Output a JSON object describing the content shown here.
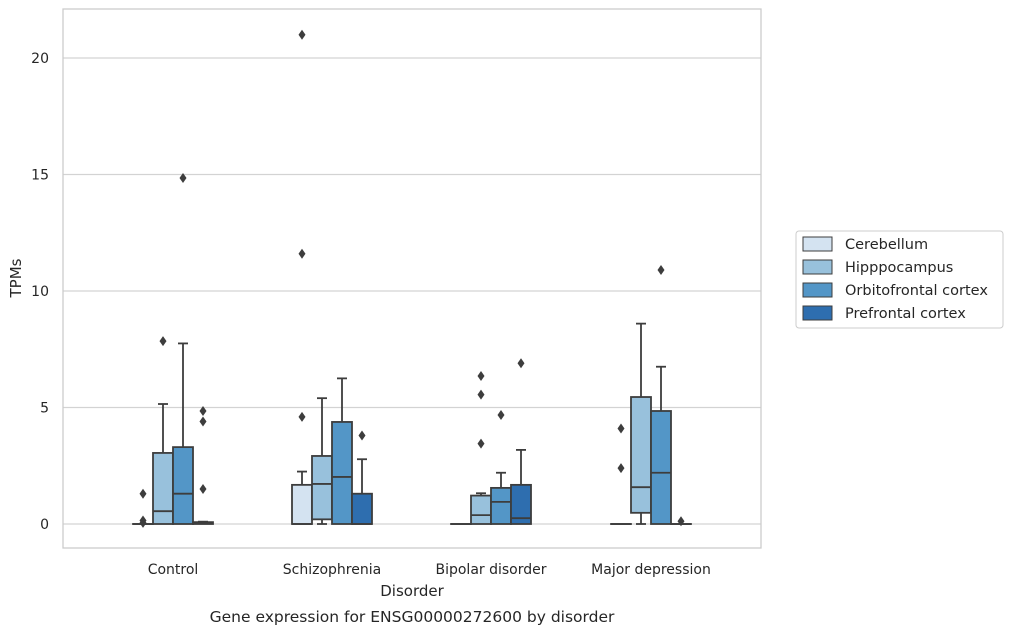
{
  "chart_data": {
    "type": "box",
    "caption": "Gene expression for ENSG00000272600 by disorder",
    "xlabel": "Disorder",
    "ylabel": "TPMs",
    "ylim": [
      -1.0,
      22.0
    ],
    "yticks": [
      0,
      5,
      10,
      15,
      20
    ],
    "grid": "horizontal",
    "legend_position": "right",
    "categories": [
      "Control",
      "Schizophrenia",
      "Bipolar disorder",
      "Major depression"
    ],
    "series": [
      {
        "name": "Cerebellum",
        "color": "#d4e3f1",
        "boxes": [
          {
            "category": "Control",
            "q1": 0.0,
            "median": 0.0,
            "q3": 0.0,
            "whisker_low": 0.0,
            "whisker_high": 0.0,
            "outliers": [
              0.15,
              1.3,
              0.05
            ]
          },
          {
            "category": "Schizophrenia",
            "q1": 0.0,
            "median": 0.0,
            "q3": 1.68,
            "whisker_low": 0.0,
            "whisker_high": 2.25,
            "outliers": [
              4.6,
              11.6,
              21.0
            ]
          },
          {
            "category": "Bipolar disorder",
            "q1": 0.0,
            "median": 0.0,
            "q3": 0.0,
            "whisker_low": 0.0,
            "whisker_high": 0.0,
            "outliers": []
          },
          {
            "category": "Major depression",
            "q1": 0.0,
            "median": 0.0,
            "q3": 0.0,
            "whisker_low": 0.0,
            "whisker_high": 0.0,
            "outliers": [
              4.1,
              2.4
            ]
          }
        ]
      },
      {
        "name": "Hipppocampus",
        "color": "#98c1dc",
        "boxes": [
          {
            "category": "Control",
            "q1": 0.0,
            "median": 0.55,
            "q3": 3.05,
            "whisker_low": 0.0,
            "whisker_high": 5.15,
            "outliers": [
              7.85
            ]
          },
          {
            "category": "Schizophrenia",
            "q1": 0.2,
            "median": 1.72,
            "q3": 2.92,
            "whisker_low": 0.0,
            "whisker_high": 5.4,
            "outliers": []
          },
          {
            "category": "Bipolar disorder",
            "q1": 0.0,
            "median": 0.38,
            "q3": 1.22,
            "whisker_low": 0.0,
            "whisker_high": 1.32,
            "outliers": [
              3.45,
              5.55,
              6.35
            ]
          },
          {
            "category": "Major depression",
            "q1": 0.48,
            "median": 1.58,
            "q3": 5.45,
            "whisker_low": 0.0,
            "whisker_high": 8.6,
            "outliers": []
          }
        ]
      },
      {
        "name": "Orbitofrontal cortex",
        "color": "#5396c7",
        "boxes": [
          {
            "category": "Control",
            "q1": 0.0,
            "median": 1.3,
            "q3": 3.3,
            "whisker_low": 0.0,
            "whisker_high": 7.75,
            "outliers": [
              14.85
            ]
          },
          {
            "category": "Schizophrenia",
            "q1": 0.0,
            "median": 2.02,
            "q3": 4.38,
            "whisker_low": 0.0,
            "whisker_high": 6.25,
            "outliers": []
          },
          {
            "category": "Bipolar disorder",
            "q1": 0.0,
            "median": 0.95,
            "q3": 1.55,
            "whisker_low": 0.0,
            "whisker_high": 2.2,
            "outliers": [
              4.68
            ]
          },
          {
            "category": "Major depression",
            "q1": 0.0,
            "median": 2.2,
            "q3": 4.85,
            "whisker_low": 0.0,
            "whisker_high": 6.75,
            "outliers": [
              10.9
            ]
          }
        ]
      },
      {
        "name": "Prefrontal cortex",
        "color": "#2e6eaf",
        "boxes": [
          {
            "category": "Control",
            "q1": 0.0,
            "median": 0.02,
            "q3": 0.08,
            "whisker_low": 0.0,
            "whisker_high": 0.1,
            "outliers": [
              4.85,
              4.4,
              1.5
            ]
          },
          {
            "category": "Schizophrenia",
            "q1": 0.0,
            "median": 0.0,
            "q3": 1.3,
            "whisker_low": 0.0,
            "whisker_high": 2.78,
            "outliers": [
              3.8
            ]
          },
          {
            "category": "Bipolar disorder",
            "q1": 0.0,
            "median": 0.25,
            "q3": 1.68,
            "whisker_low": 0.0,
            "whisker_high": 3.18,
            "outliers": [
              6.9
            ]
          },
          {
            "category": "Major depression",
            "q1": 0.0,
            "median": 0.0,
            "q3": 0.0,
            "whisker_low": 0.0,
            "whisker_high": 0.0,
            "outliers": [
              0.12
            ]
          }
        ]
      }
    ]
  }
}
